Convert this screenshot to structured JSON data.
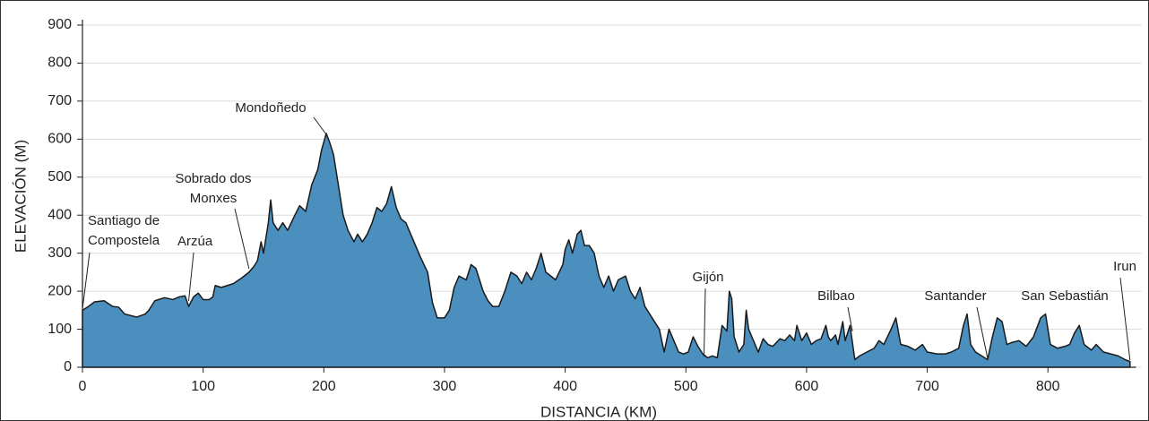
{
  "chart_data": {
    "type": "area",
    "x_label": "DISTANCIA (KM)",
    "y_label": "ELEVACIÓN (M)",
    "color": "#4a8fbe",
    "grid": true,
    "xlim": [
      0,
      870
    ],
    "ylim": [
      0,
      900
    ],
    "xticks": [
      0,
      100,
      200,
      300,
      400,
      500,
      600,
      700,
      800
    ],
    "yticks": [
      0,
      100,
      200,
      300,
      400,
      500,
      600,
      700,
      800,
      900
    ],
    "x": [
      0,
      5,
      10,
      18,
      25,
      30,
      35,
      45,
      52,
      55,
      60,
      68,
      75,
      80,
      85,
      88,
      92,
      96,
      100,
      105,
      108,
      110,
      115,
      125,
      132,
      138,
      142,
      145,
      148,
      150,
      154,
      156,
      158,
      162,
      166,
      170,
      176,
      180,
      185,
      190,
      195,
      198,
      202,
      205,
      208,
      212,
      216,
      220,
      225,
      228,
      232,
      236,
      240,
      244,
      248,
      252,
      256,
      260,
      264,
      268,
      272,
      276,
      280,
      286,
      290,
      294,
      300,
      304,
      308,
      312,
      318,
      322,
      326,
      332,
      336,
      340,
      345,
      350,
      355,
      360,
      364,
      368,
      372,
      376,
      380,
      384,
      388,
      392,
      398,
      400,
      403,
      406,
      410,
      413,
      416,
      420,
      424,
      428,
      432,
      436,
      440,
      444,
      450,
      454,
      458,
      462,
      466,
      470,
      474,
      478,
      482,
      486,
      490,
      494,
      498,
      502,
      506,
      510,
      514,
      518,
      522,
      526,
      530,
      534,
      536,
      538,
      540,
      544,
      548,
      550,
      552,
      556,
      560,
      564,
      568,
      572,
      578,
      582,
      586,
      590,
      592,
      596,
      600,
      604,
      608,
      612,
      616,
      618,
      620,
      624,
      626,
      630,
      632,
      636,
      640,
      644,
      650,
      656,
      660,
      664,
      670,
      674,
      678,
      684,
      690,
      696,
      700,
      708,
      715,
      720,
      726,
      730,
      733,
      736,
      740,
      745,
      750,
      754,
      758,
      762,
      766,
      770,
      776,
      782,
      788,
      794,
      798,
      802,
      808,
      814,
      818,
      822,
      826,
      830,
      836,
      840,
      846,
      852,
      858,
      864,
      868
    ],
    "values": [
      150,
      160,
      172,
      175,
      160,
      158,
      140,
      132,
      140,
      150,
      175,
      183,
      178,
      185,
      188,
      160,
      185,
      195,
      178,
      178,
      185,
      215,
      210,
      220,
      235,
      250,
      265,
      280,
      330,
      300,
      380,
      440,
      380,
      360,
      380,
      360,
      400,
      425,
      410,
      480,
      520,
      570,
      615,
      590,
      560,
      480,
      400,
      360,
      330,
      350,
      330,
      350,
      380,
      420,
      410,
      430,
      475,
      420,
      390,
      380,
      350,
      320,
      290,
      250,
      170,
      130,
      130,
      150,
      210,
      240,
      230,
      270,
      260,
      200,
      175,
      160,
      160,
      200,
      250,
      240,
      220,
      250,
      230,
      260,
      300,
      250,
      240,
      230,
      270,
      310,
      335,
      300,
      350,
      360,
      320,
      320,
      300,
      240,
      210,
      240,
      200,
      230,
      240,
      200,
      180,
      210,
      160,
      140,
      120,
      100,
      40,
      100,
      70,
      40,
      35,
      40,
      80,
      55,
      35,
      25,
      30,
      25,
      110,
      95,
      200,
      180,
      80,
      40,
      60,
      150,
      100,
      70,
      40,
      75,
      60,
      55,
      75,
      70,
      85,
      70,
      110,
      70,
      90,
      60,
      70,
      75,
      110,
      80,
      70,
      85,
      60,
      120,
      70,
      110,
      20,
      30,
      40,
      50,
      70,
      60,
      100,
      130,
      60,
      55,
      45,
      60,
      40,
      35,
      35,
      40,
      50,
      110,
      140,
      60,
      40,
      30,
      20,
      80,
      130,
      120,
      60,
      65,
      70,
      55,
      80,
      130,
      140,
      60,
      50,
      55,
      60,
      90,
      110,
      60,
      45,
      60,
      40,
      35,
      30,
      20,
      15
    ],
    "annotations": [
      {
        "text": [
          "Santiago de",
          "Compostela"
        ],
        "x": 0
      },
      {
        "text": [
          "Arzúa"
        ],
        "x": 88
      },
      {
        "text": [
          "Sobrado dos",
          "Monxes"
        ],
        "x": 138
      },
      {
        "text": [
          "Mondoñedo"
        ],
        "x": 202
      },
      {
        "text": [
          "Gijón"
        ],
        "x": 515
      },
      {
        "text": [
          "Bilbao"
        ],
        "x": 638
      },
      {
        "text": [
          "Santander"
        ],
        "x": 750
      },
      {
        "text": [
          "San Sebastián"
        ],
        "x": 800
      },
      {
        "text": [
          "Irun"
        ],
        "x": 868
      }
    ]
  }
}
